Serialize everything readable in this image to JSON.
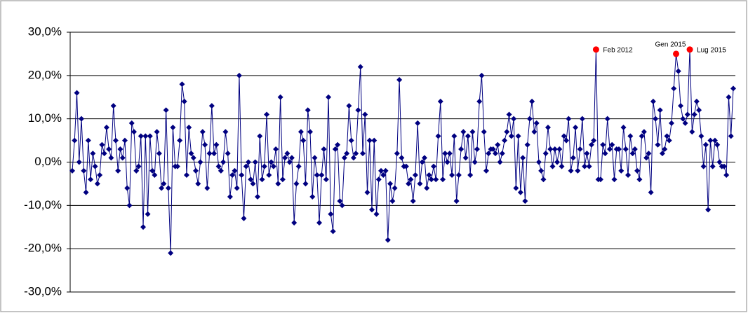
{
  "chart_data": {
    "type": "line",
    "ylim": [
      -30,
      30
    ],
    "yticks": [
      {
        "value": -30,
        "label": "-30,0%"
      },
      {
        "value": -20,
        "label": "-20,0%"
      },
      {
        "value": -10,
        "label": "-10,0%"
      },
      {
        "value": 0,
        "label": "0,0%"
      },
      {
        "value": 10,
        "label": "10,0%"
      },
      {
        "value": 20,
        "label": "20,0%"
      },
      {
        "value": 30,
        "label": "30,0%"
      }
    ],
    "grid": true,
    "series": [
      {
        "color": "#000080",
        "marker": "diamond",
        "values": [
          -2,
          5,
          16,
          0,
          10,
          -2,
          -7,
          5,
          -4,
          2,
          -1,
          -5,
          -3,
          4,
          2,
          8,
          3,
          1,
          13,
          5,
          -2,
          3,
          1,
          5,
          -6,
          -10,
          9,
          7,
          -2,
          -1,
          6,
          -15,
          6,
          -12,
          6,
          -2,
          -3,
          7,
          2,
          -6,
          -5,
          12,
          -6,
          -21,
          8,
          -1,
          -1,
          5,
          18,
          14,
          -3,
          8,
          2,
          1,
          -2,
          -5,
          0,
          7,
          4,
          -6,
          2,
          13,
          2,
          4,
          -1,
          -2,
          0,
          7,
          2,
          -8,
          -3,
          -2,
          -6,
          20,
          -3,
          -13,
          -1,
          0,
          -4,
          -5,
          0,
          -8,
          6,
          -4,
          -1,
          11,
          -3,
          0,
          -1,
          3,
          -5,
          15,
          -4,
          1,
          2,
          0,
          1,
          -14,
          -5,
          -1,
          7,
          5,
          -5,
          12,
          7,
          -8,
          1,
          -3,
          -14,
          -3,
          3,
          -4,
          15,
          -12,
          -16,
          3,
          4,
          -9,
          -10,
          1,
          2,
          13,
          5,
          1,
          2,
          12,
          22,
          2,
          11,
          -7,
          5,
          -11,
          5,
          -12,
          -4,
          -2,
          -3,
          -2,
          -18,
          -5,
          -9,
          -6,
          2,
          19,
          1,
          -1,
          -1,
          -5,
          -4,
          -9,
          -3,
          9,
          -5,
          0,
          1,
          -6,
          -3,
          -4,
          -1,
          -4,
          6,
          14,
          -4,
          2,
          0,
          2,
          -3,
          6,
          -9,
          -3,
          3,
          7,
          1,
          6,
          -3,
          7,
          0,
          3,
          14,
          20,
          7,
          -2,
          2,
          3,
          3,
          2,
          4,
          0,
          2,
          5,
          7,
          11,
          6,
          10,
          -6,
          6,
          -7,
          1,
          -9,
          4,
          10,
          14,
          7,
          9,
          0,
          -2,
          -4,
          2,
          8,
          3,
          -1,
          3,
          0,
          3,
          -1,
          6,
          5,
          10,
          -2,
          1,
          8,
          -2,
          3,
          10,
          -1,
          2,
          -1,
          4,
          5,
          26,
          -4,
          -4,
          4,
          2,
          10,
          3,
          4,
          -4,
          3,
          3,
          -2,
          8,
          3,
          -3,
          6,
          2,
          3,
          -2,
          -4,
          6,
          7,
          1,
          2,
          -7,
          14,
          10,
          4,
          12,
          2,
          3,
          6,
          5,
          9,
          17,
          25,
          21,
          13,
          10,
          9,
          11,
          26,
          7,
          11,
          14,
          12,
          6,
          -1,
          4,
          -11,
          5,
          -1,
          5,
          4,
          0,
          -1,
          -1,
          -3,
          15,
          6,
          17
        ]
      },
      {
        "color": "#ff0000",
        "marker": "circle",
        "values": [
          null,
          null,
          null,
          null,
          null,
          null,
          null,
          null,
          null,
          null,
          null,
          null,
          null,
          null,
          null,
          null,
          null,
          null,
          null,
          null,
          null,
          null,
          null,
          null,
          null,
          null,
          null,
          null,
          null,
          null,
          null,
          null,
          null,
          null,
          null,
          null,
          null,
          null,
          null,
          null,
          null,
          null,
          null,
          null,
          null,
          null,
          null,
          null,
          null,
          null,
          null,
          null,
          null,
          null,
          null,
          null,
          null,
          null,
          null,
          null,
          null,
          null,
          null,
          null,
          null,
          null,
          null,
          null,
          null,
          null,
          null,
          null,
          null,
          null,
          null,
          null,
          null,
          null,
          null,
          null,
          null,
          null,
          null,
          null,
          null,
          null,
          null,
          null,
          null,
          null,
          null,
          null,
          null,
          null,
          null,
          null,
          null,
          null,
          null,
          null,
          null,
          null,
          null,
          null,
          null,
          null,
          null,
          null,
          null,
          null,
          null,
          null,
          null,
          null,
          null,
          null,
          null,
          null,
          null,
          null,
          null,
          null,
          null,
          null,
          null,
          null,
          null,
          null,
          null,
          null,
          null,
          null,
          null,
          null,
          null,
          null,
          null,
          null,
          null,
          null,
          null,
          null,
          null,
          null,
          null,
          null,
          null,
          null,
          null,
          null,
          null,
          null,
          null,
          null,
          null,
          null,
          null,
          null,
          null,
          null,
          null,
          null,
          null,
          null,
          null,
          null,
          null,
          null,
          null,
          null,
          null,
          null,
          null,
          null,
          null,
          null,
          null,
          null,
          null,
          null,
          null,
          null,
          null,
          null,
          null,
          null,
          null,
          null,
          null,
          null,
          null,
          null,
          null,
          null,
          null,
          null,
          null,
          null,
          null,
          null,
          null,
          null,
          null,
          null,
          null,
          null,
          null,
          null,
          null,
          null,
          null,
          null,
          null,
          null,
          null,
          null,
          null,
          null,
          null,
          null,
          null,
          null,
          null,
          null,
          null,
          null,
          null,
          null,
          null,
          26,
          null,
          null,
          null,
          null,
          null,
          null,
          null,
          null,
          null,
          null,
          null,
          null,
          null,
          null,
          null,
          null,
          null,
          null,
          null,
          null,
          null,
          null,
          null,
          null,
          null,
          null,
          null,
          null,
          null,
          null,
          null,
          null,
          null,
          null,
          25,
          null,
          null,
          null,
          null,
          null,
          26,
          null,
          null,
          null,
          null,
          null,
          null,
          null,
          null,
          null,
          null,
          null,
          null,
          null,
          null,
          null,
          null,
          null,
          null,
          null
        ],
        "value_labels": [
          null,
          null,
          null,
          null,
          null,
          null,
          null,
          null,
          null,
          null,
          null,
          null,
          null,
          null,
          null,
          null,
          null,
          null,
          null,
          null,
          null,
          null,
          null,
          null,
          null,
          null,
          null,
          null,
          null,
          null,
          null,
          null,
          null,
          null,
          null,
          null,
          null,
          null,
          null,
          null,
          null,
          null,
          null,
          null,
          null,
          null,
          null,
          null,
          null,
          null,
          null,
          null,
          null,
          null,
          null,
          null,
          null,
          null,
          null,
          null,
          null,
          null,
          null,
          null,
          null,
          null,
          null,
          null,
          null,
          null,
          null,
          null,
          null,
          null,
          null,
          null,
          null,
          null,
          null,
          null,
          null,
          null,
          null,
          null,
          null,
          null,
          null,
          null,
          null,
          null,
          null,
          null,
          null,
          null,
          null,
          null,
          null,
          null,
          null,
          null,
          null,
          null,
          null,
          null,
          null,
          null,
          null,
          null,
          null,
          null,
          null,
          null,
          null,
          null,
          null,
          null,
          null,
          null,
          null,
          null,
          null,
          null,
          null,
          null,
          null,
          null,
          null,
          null,
          null,
          null,
          null,
          null,
          null,
          null,
          null,
          null,
          null,
          null,
          null,
          null,
          null,
          null,
          null,
          null,
          null,
          null,
          null,
          null,
          null,
          null,
          null,
          null,
          null,
          null,
          null,
          null,
          null,
          null,
          null,
          null,
          null,
          null,
          null,
          null,
          null,
          null,
          null,
          null,
          null,
          null,
          null,
          null,
          null,
          null,
          null,
          null,
          null,
          null,
          null,
          null,
          null,
          null,
          null,
          null,
          null,
          null,
          null,
          null,
          null,
          null,
          null,
          null,
          null,
          null,
          null,
          null,
          null,
          null,
          null,
          null,
          null,
          null,
          null,
          null,
          null,
          null,
          null,
          null,
          null,
          null,
          null,
          null,
          null,
          null,
          null,
          null,
          null,
          null,
          null,
          null,
          null,
          null,
          null,
          null,
          null,
          null,
          null,
          null,
          null,
          "Feb 2012",
          null,
          null,
          null,
          null,
          null,
          null,
          null,
          null,
          null,
          null,
          null,
          null,
          null,
          null,
          null,
          null,
          null,
          null,
          null,
          null,
          null,
          null,
          null,
          null,
          null,
          null,
          null,
          null,
          null,
          null,
          null,
          null,
          null,
          null,
          "Gen 2015",
          null,
          null,
          null,
          null,
          null,
          "Lug 2015",
          null,
          null,
          null,
          null,
          null,
          null,
          null,
          null,
          null,
          null,
          null,
          null,
          null,
          null,
          null,
          null,
          null,
          null,
          null
        ]
      }
    ]
  }
}
